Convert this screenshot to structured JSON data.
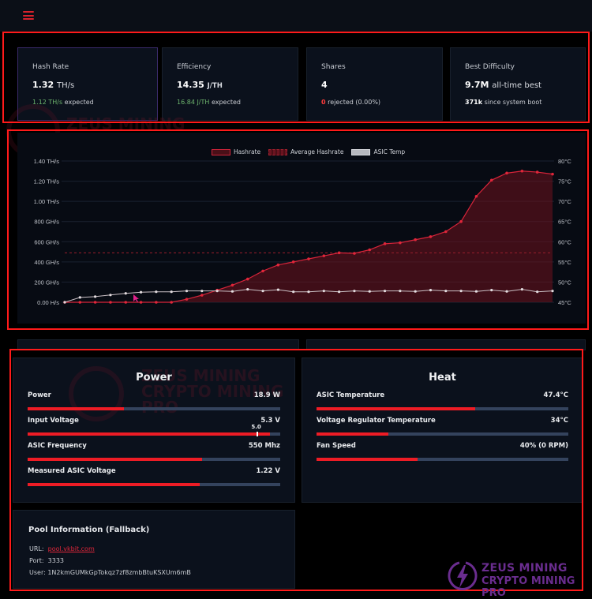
{
  "topbar": {
    "menu_icon": "hamburger-menu-icon"
  },
  "stats": [
    {
      "label": "Hash Rate",
      "value": "1.32",
      "unit": "TH/s",
      "sub_value": "1.12 TH/s",
      "sub_text": "expected"
    },
    {
      "label": "Efficiency",
      "value": "14.35",
      "unit": "J/TH",
      "sub_value": "16.84 J/TH",
      "sub_text": "expected"
    },
    {
      "label": "Shares",
      "value": "4",
      "unit": "",
      "sub_value": "0",
      "sub_text": "rejected (0.00%)"
    },
    {
      "label": "Best Difficulty",
      "value": "9.7M",
      "unit": "all-time best",
      "sub_value": "371k",
      "sub_text": "since system boot"
    }
  ],
  "watermark": {
    "line1": "ZEUS MINING",
    "line2": "CRYPTO MINING PRO"
  },
  "chart_data": {
    "type": "line",
    "title": "",
    "legend": [
      "Hashrate",
      "Average Hashrate",
      "ASIC Temp"
    ],
    "legend_position": "top",
    "grid": true,
    "y_left": {
      "label": "Hashrate",
      "ticks": [
        "0.00 H/s",
        "200 GH/s",
        "400 GH/s",
        "600 GH/s",
        "800 GH/s",
        "1.00 TH/s",
        "1.20 TH/s",
        "1.40 TH/s"
      ],
      "range_ghs": [
        0,
        1400
      ]
    },
    "y_right": {
      "label": "ASIC Temp",
      "ticks": [
        "45°C",
        "50°C",
        "55°C",
        "60°C",
        "65°C",
        "70°C",
        "75°C",
        "80°C"
      ],
      "range": [
        45,
        80
      ]
    },
    "x": [
      1,
      2,
      3,
      4,
      5,
      6,
      7,
      8,
      9,
      10,
      11,
      12,
      13,
      14,
      15,
      16,
      17,
      18,
      19,
      20,
      21,
      22,
      23,
      24,
      25,
      26,
      27,
      28,
      29,
      30,
      31,
      32,
      33
    ],
    "series": [
      {
        "name": "Hashrate",
        "unit": "GH/s",
        "color": "#e0263a",
        "fill": true,
        "values": [
          0,
          0,
          0,
          0,
          0,
          0,
          0,
          0,
          30,
          70,
          120,
          170,
          230,
          310,
          370,
          400,
          430,
          460,
          490,
          485,
          520,
          580,
          590,
          620,
          650,
          700,
          800,
          1050,
          1210,
          1280,
          1300,
          1290,
          1270
        ]
      },
      {
        "name": "Average Hashrate",
        "unit": "GH/s",
        "color": "#a8202e",
        "dashed": true,
        "values_const": 490
      },
      {
        "name": "ASIC Temp",
        "unit": "°C",
        "color": "#d9d9de",
        "values": [
          45,
          46.2,
          46.4,
          46.8,
          47.2,
          47.5,
          47.6,
          47.6,
          47.8,
          47.8,
          47.8,
          47.7,
          48.2,
          47.8,
          48.1,
          47.6,
          47.6,
          47.8,
          47.6,
          47.8,
          47.7,
          47.8,
          47.8,
          47.7,
          48.0,
          47.8,
          47.8,
          47.7,
          48.0,
          47.7,
          48.2,
          47.6,
          47.8
        ]
      }
    ]
  },
  "power": {
    "title": "Power",
    "rows": [
      {
        "label": "Power",
        "value": "18.9 W",
        "pct": 38
      },
      {
        "label": "Input Voltage",
        "value": "5.3 V",
        "pct": 96,
        "marker_label": "5.0",
        "marker_pct": 90.5
      },
      {
        "label": "ASIC Frequency",
        "value": "550 Mhz",
        "pct": 69
      },
      {
        "label": "Measured ASIC Voltage",
        "value": "1.22 V",
        "pct": 68
      }
    ]
  },
  "heat": {
    "title": "Heat",
    "rows": [
      {
        "label": "ASIC Temperature",
        "value": "47.4°C",
        "pct": 63
      },
      {
        "label": "Voltage Regulator Temperature",
        "value": "34°C",
        "pct": 28.5
      },
      {
        "label": "Fan Speed",
        "value": "40% (0 RPM)",
        "pct": 40
      }
    ]
  },
  "pool": {
    "title": "Pool Information (Fallback)",
    "url_label": "URL:",
    "url": "pool.vkbit.com",
    "port_label": "Port:",
    "port": "3333",
    "user_label": "User:",
    "user": "1N2kmGUMkGpTokqz7zf8zmbBtuKSXUm6mB"
  },
  "logo": {
    "line1": "ZEUS MINING",
    "line2": "CRYPTO MINING PRO"
  }
}
